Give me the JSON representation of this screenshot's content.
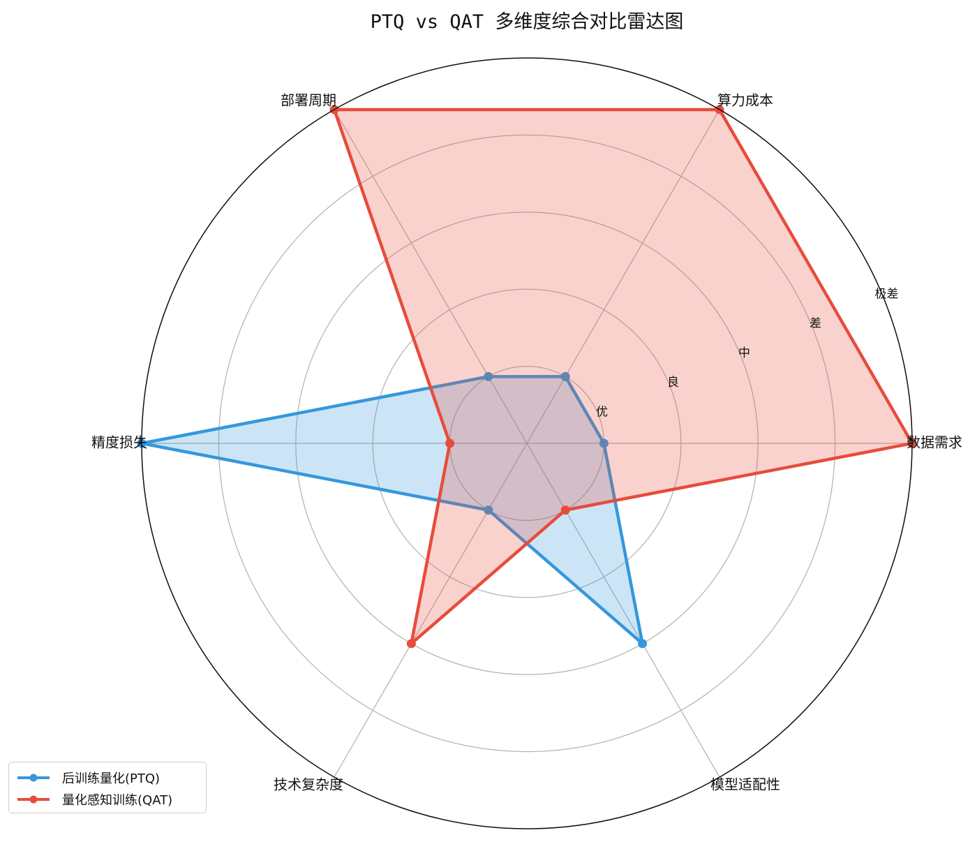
{
  "chart_data": {
    "type": "radar",
    "title": "PTQ vs QAT 多维度综合对比雷达图",
    "axes": [
      "数据需求",
      "算力成本",
      "部署周期",
      "精度损失",
      "技术复杂度",
      "模型适配性"
    ],
    "scale_labels": [
      "优",
      "良",
      "中",
      "差",
      "极差"
    ],
    "rlim": [
      0,
      5
    ],
    "grid": true,
    "legend_position": "bottom-left",
    "series": [
      {
        "name": "后训练量化(PTQ)",
        "color": "#3498db",
        "values": [
          1,
          1,
          1,
          5,
          1,
          3
        ]
      },
      {
        "name": "量化感知训练(QAT)",
        "color": "#e74c3c",
        "values": [
          5,
          5,
          5,
          1,
          3,
          1
        ]
      }
    ]
  }
}
